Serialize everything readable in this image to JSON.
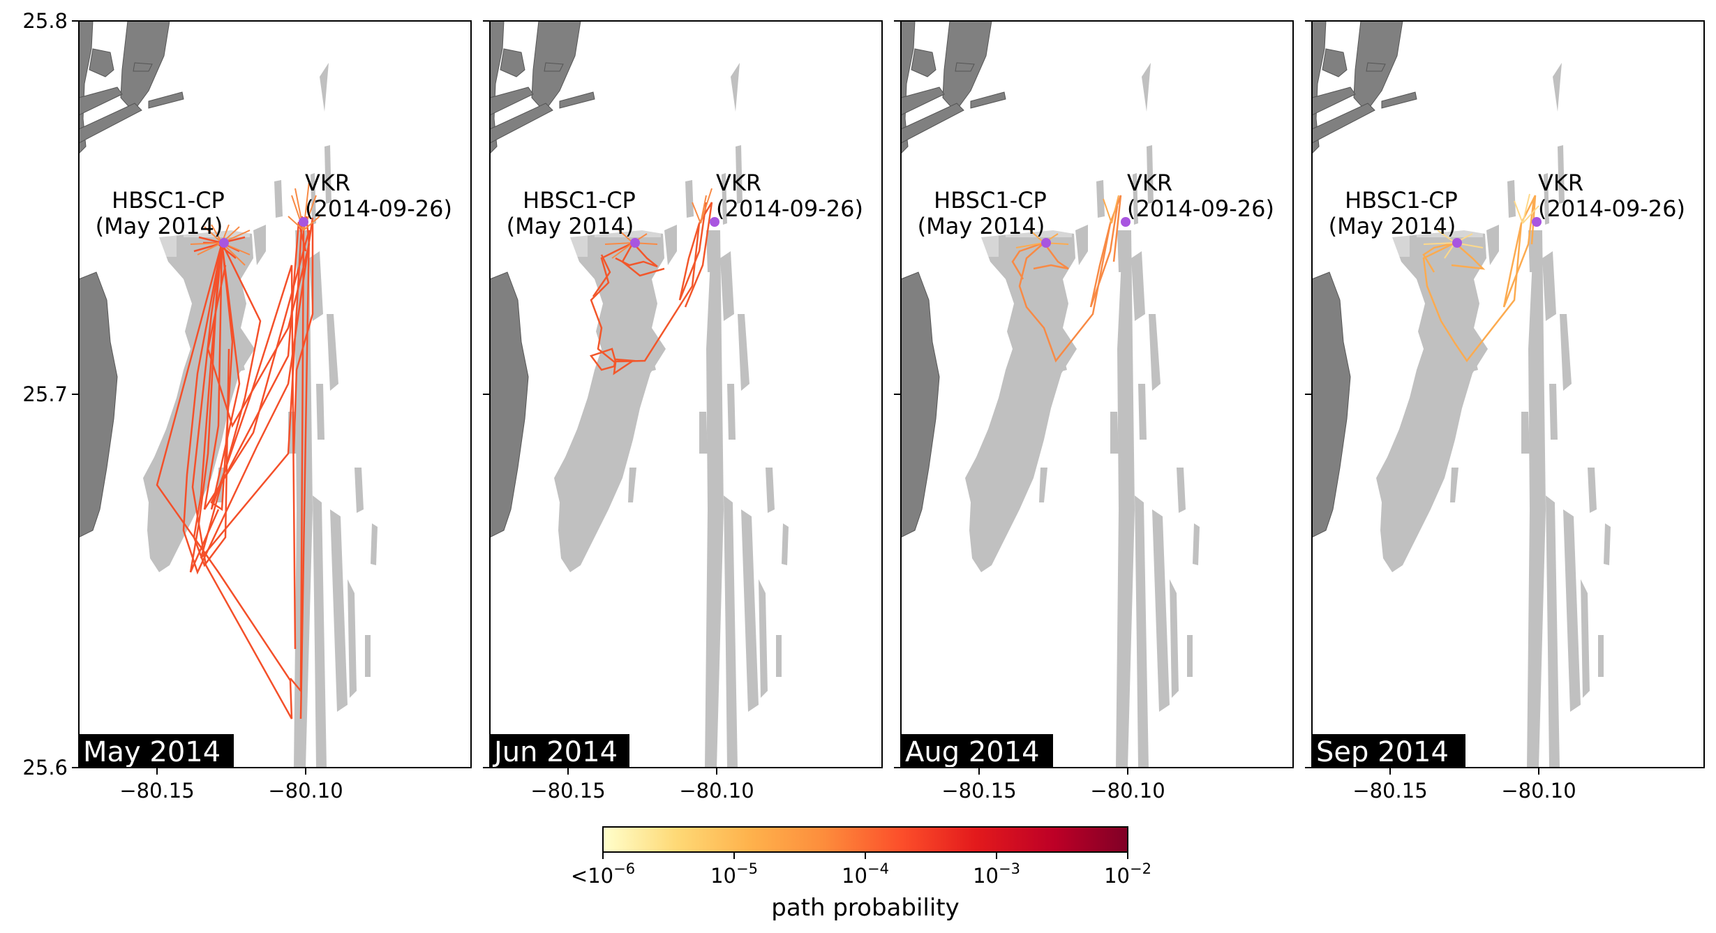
{
  "y_ticks": [
    "25.8",
    "25.7",
    "25.6"
  ],
  "x_ticks": [
    "−80.15",
    "−80.10"
  ],
  "sites": {
    "origin": {
      "name": "HBSC1-CP",
      "date": "(May 2014)"
    },
    "destination": {
      "name": "VKR",
      "date": "(2014-09-26)"
    }
  },
  "panels": [
    {
      "month": "May 2014",
      "path_color": "#f4502a"
    },
    {
      "month": "Jun 2014",
      "path_color": "#f2572b"
    },
    {
      "month": "Aug 2014",
      "path_color": "#f88a45"
    },
    {
      "month": "Sep 2014",
      "path_color": "#fcab50"
    }
  ],
  "colorbar": {
    "label": "path probability",
    "ticks": [
      {
        "base": "<10",
        "exp": "−6"
      },
      {
        "base": "10",
        "exp": "−5"
      },
      {
        "base": "10",
        "exp": "−4"
      },
      {
        "base": "10",
        "exp": "−3"
      },
      {
        "base": "10",
        "exp": "−2"
      }
    ],
    "colors": [
      "#ffffcc",
      "#fed976",
      "#feb24c",
      "#fd8d3c",
      "#fc4e2a",
      "#e31a1c",
      "#bd0026",
      "#800026"
    ]
  },
  "colors": {
    "land": "#808080",
    "seagrass": "#c0c0c0",
    "site_marker": "#a855e0"
  }
}
